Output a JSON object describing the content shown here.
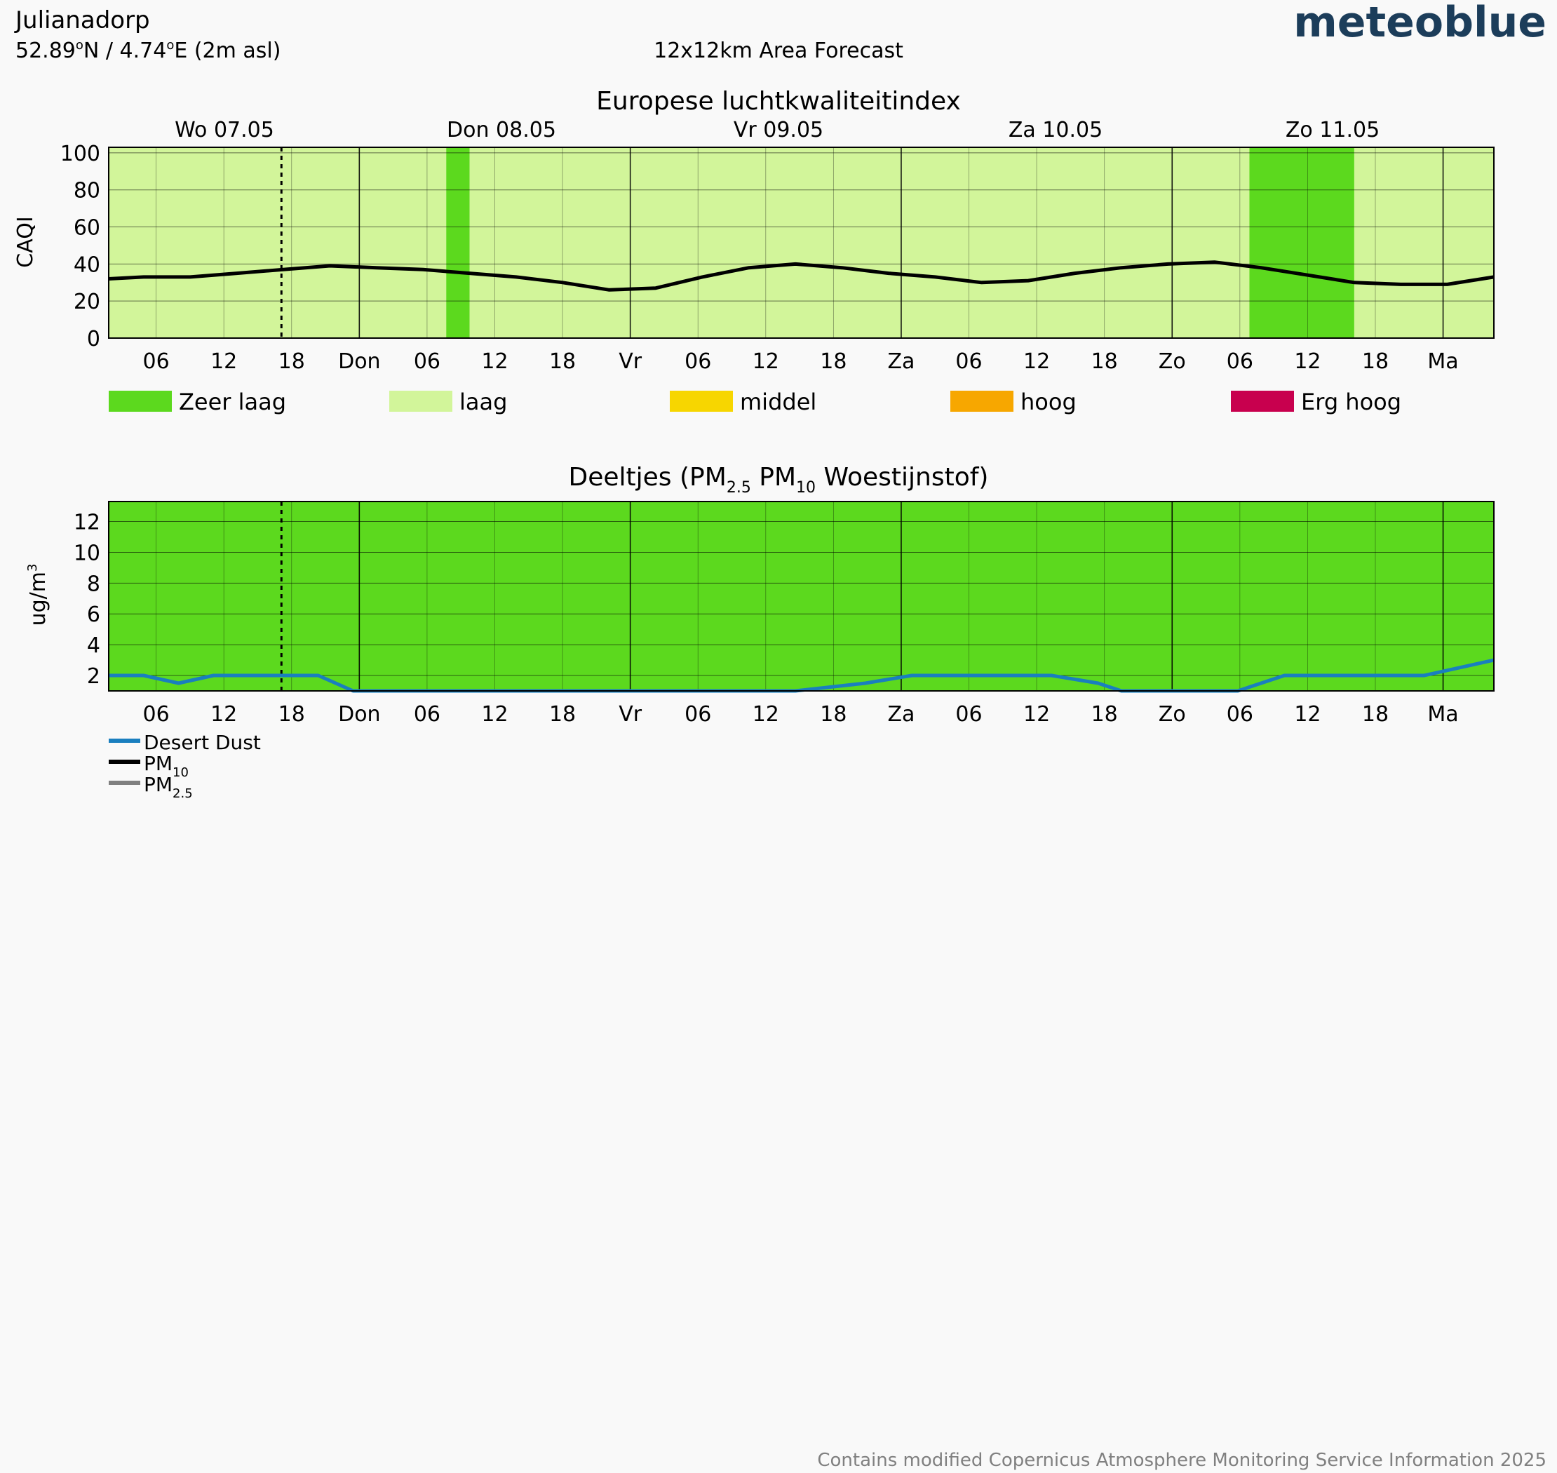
{
  "header": {
    "location": "Julianadorp",
    "coords_main": "52.89",
    "coords_deg1": "o",
    "coords_mid": "N / 4.74",
    "coords_deg2": "o",
    "coords_end": "E (2m asl)",
    "forecast": "12x12km Area Forecast",
    "brand": "meteoblue"
  },
  "colors": {
    "zeer_laag": "#5cd91e",
    "laag": "#d2f59a",
    "middel": "#f7d600",
    "hoog": "#f7a700",
    "erg_hoog": "#c8004e",
    "line_black": "#000000",
    "line_blue": "#1a7fbf",
    "line_grey": "#808080"
  },
  "day_labels": [
    "Wo 07.05",
    "Don 08.05",
    "Vr 09.05",
    "Za 10.05",
    "Zo 11.05"
  ],
  "x_ticks": [
    "06",
    "12",
    "18",
    "Don",
    "06",
    "12",
    "18",
    "Vr",
    "06",
    "12",
    "18",
    "Za",
    "06",
    "12",
    "18",
    "Zo",
    "06",
    "12",
    "18",
    "Ma"
  ],
  "aqi_legend": [
    {
      "key": "zeer_laag",
      "label": "Zeer laag"
    },
    {
      "key": "laag",
      "label": "laag"
    },
    {
      "key": "middel",
      "label": "middel"
    },
    {
      "key": "hoog",
      "label": "hoog"
    },
    {
      "key": "erg_hoog",
      "label": "Erg hoog"
    }
  ],
  "footer": {
    "credit": "Contains modified Copernicus Atmosphere Monitoring Service Information 2025"
  },
  "chart_data": [
    {
      "id": "caqi",
      "type": "line",
      "title": "Europese luchtkwaliteitindex",
      "ylabel": "CAQI",
      "ylim": [
        0,
        103
      ],
      "yticks": [
        0,
        20,
        40,
        60,
        80,
        100
      ],
      "xlim": [
        1,
        120
      ],
      "background_bands": [
        {
          "from": 1,
          "to": 120,
          "key": "laag"
        },
        {
          "from": 30,
          "to": 32,
          "key": "zeer_laag"
        },
        {
          "from": 99,
          "to": 108,
          "key": "zeer_laag"
        }
      ],
      "series": [
        {
          "color_key": "line_black",
          "x": [
            1,
            4,
            8,
            12,
            16,
            20,
            24,
            28,
            32,
            36,
            40,
            44,
            48,
            52,
            56,
            60,
            64,
            68,
            72,
            76,
            80,
            84,
            88,
            92,
            96,
            100,
            104,
            108,
            112,
            116,
            120
          ],
          "values": [
            32,
            33,
            33,
            35,
            37,
            39,
            38,
            37,
            35,
            33,
            30,
            26,
            27,
            33,
            38,
            40,
            38,
            35,
            33,
            30,
            31,
            35,
            38,
            40,
            41,
            38,
            34,
            30,
            29,
            29,
            33
          ]
        }
      ]
    },
    {
      "id": "deeltjes",
      "type": "line",
      "title_parts": [
        "Deeltjes (PM",
        "2.5",
        " PM",
        "10",
        " Woestijnstof)"
      ],
      "ylabel_parts": [
        "ug/m",
        "3"
      ],
      "ylim": [
        1,
        13.3
      ],
      "yticks": [
        2,
        4,
        6,
        8,
        10,
        12
      ],
      "xlim": [
        1,
        120
      ],
      "background_bands": [
        {
          "from": 1,
          "to": 120,
          "key": "zeer_laag"
        }
      ],
      "legend": [
        {
          "color_key": "line_blue",
          "label_parts": [
            "Desert Dust",
            ""
          ]
        },
        {
          "color_key": "line_black",
          "label_parts": [
            "PM",
            "10"
          ]
        },
        {
          "color_key": "line_grey",
          "label_parts": [
            "PM",
            "2.5"
          ]
        }
      ],
      "series": [
        {
          "name": "Desert Dust",
          "color_key": "line_blue",
          "x": [
            1,
            4,
            7,
            10,
            13,
            16,
            19,
            22,
            25,
            30,
            40,
            50,
            60,
            66,
            70,
            74,
            78,
            82,
            86,
            88,
            91,
            94,
            98,
            100,
            102,
            104,
            106,
            108,
            110,
            114,
            120
          ],
          "values": [
            2,
            2,
            1.5,
            2,
            2,
            2,
            2,
            1,
            1,
            1,
            1,
            1,
            1,
            1.5,
            2,
            2,
            2,
            2,
            1.5,
            1,
            1,
            1,
            1,
            1.5,
            2,
            2,
            2,
            2,
            2,
            2,
            3
          ]
        }
      ]
    }
  ]
}
